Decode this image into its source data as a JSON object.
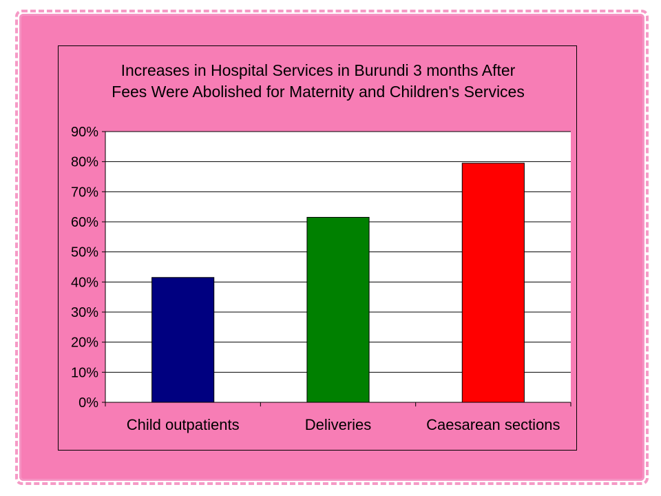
{
  "chart_data": {
    "type": "bar",
    "title": "Increases in Hospital Services in Burundi 3 months After Fees Were Abolished for Maternity and Children's Services",
    "title_lines": [
      "Increases in Hospital Services in Burundi 3 months After",
      "Fees Were Abolished for Maternity and Children's Services"
    ],
    "categories": [
      "Child outpatients",
      "Deliveries",
      "Caesarean sections"
    ],
    "values": [
      41.5,
      61.5,
      79.5
    ],
    "colors": [
      "#000080",
      "#008000",
      "#ff0000"
    ],
    "ylim": [
      0,
      90
    ],
    "yticks": [
      0,
      10,
      20,
      30,
      40,
      50,
      60,
      70,
      80,
      90
    ],
    "ytick_labels": [
      "0%",
      "10%",
      "20%",
      "30%",
      "40%",
      "50%",
      "60%",
      "70%",
      "80%",
      "90%"
    ],
    "grid": true,
    "plot_background": "#ffffff",
    "chart_background": "#f77db5",
    "xlabel": "",
    "ylabel": ""
  }
}
